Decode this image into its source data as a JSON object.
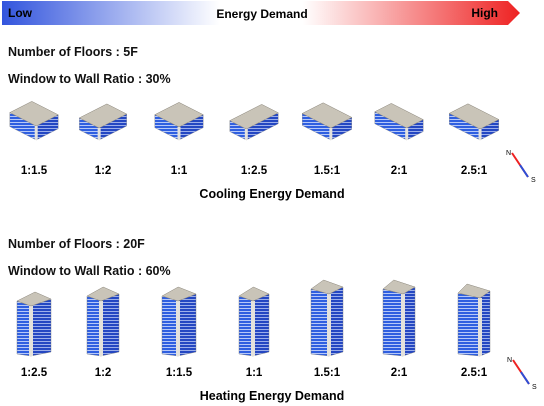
{
  "energy_scale": {
    "low_label": "Low",
    "title": "Energy Demand",
    "high_label": "High",
    "low_color": "#3355dd",
    "high_color": "#ee2222"
  },
  "groups": [
    {
      "floors_label": "Number of Floors : 5F",
      "wwr_label": "Window to Wall Ratio : 30%",
      "ratios": [
        "1:1.5",
        "1:2",
        "1:1",
        "1:2.5",
        "1.5:1",
        "2:1",
        "2.5:1"
      ],
      "caption": "Cooling Energy Demand",
      "building_form": "low-rise-slab"
    },
    {
      "floors_label": "Number of Floors : 20F",
      "wwr_label": "Window to Wall Ratio : 60%",
      "ratios": [
        "1:2.5",
        "1:2",
        "1:1.5",
        "1:1",
        "1.5:1",
        "2:1",
        "2.5:1"
      ],
      "caption": "Heating Energy Demand",
      "building_form": "high-rise-tower"
    }
  ],
  "compass": {
    "north_label": "N",
    "south_label": "S",
    "icon": "compass-needle-icon"
  },
  "colors": {
    "facade_glass": "#2f5fe0",
    "roof": "#c9c4b8",
    "wall_solid": "#e4e2dc"
  }
}
